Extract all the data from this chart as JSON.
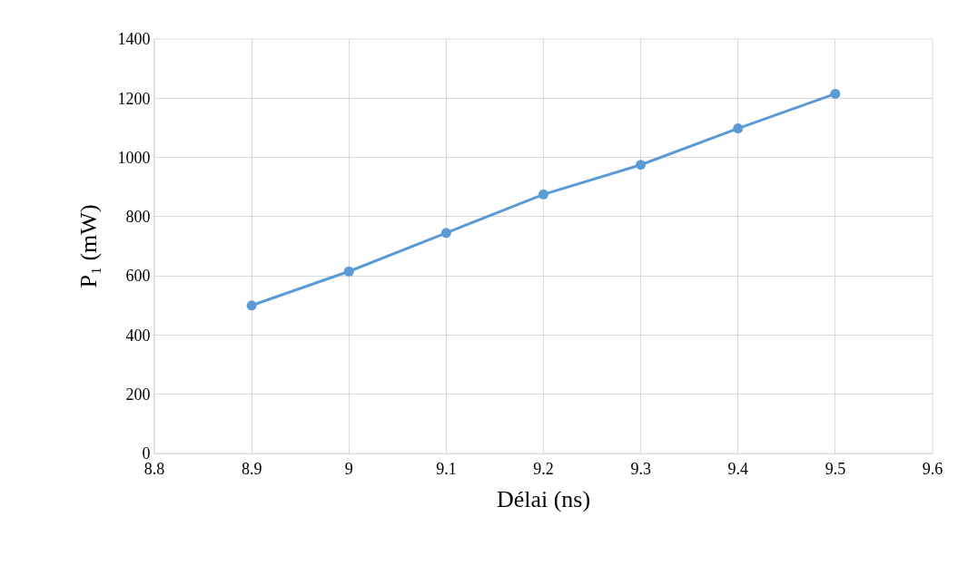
{
  "chart_data": {
    "type": "line",
    "xlabel": "Délai (ns)",
    "ylabel": "P₁ (mW)",
    "x": [
      8.9,
      9.0,
      9.1,
      9.2,
      9.3,
      9.4,
      9.5
    ],
    "series": [
      {
        "color": "#5b9bd5",
        "values": [
          500,
          615,
          745,
          875,
          975,
          1098,
          1215
        ]
      }
    ],
    "xlim": [
      8.8,
      9.6
    ],
    "xticks": [
      8.8,
      8.9,
      9,
      9.1,
      9.2,
      9.3,
      9.4,
      9.5,
      9.6
    ],
    "ylim": [
      0,
      1400
    ],
    "yticks": [
      0,
      200,
      400,
      600,
      800,
      1000,
      1200,
      1400
    ],
    "grid": true,
    "marker": "circle",
    "line_style": "solid",
    "legend": false
  }
}
